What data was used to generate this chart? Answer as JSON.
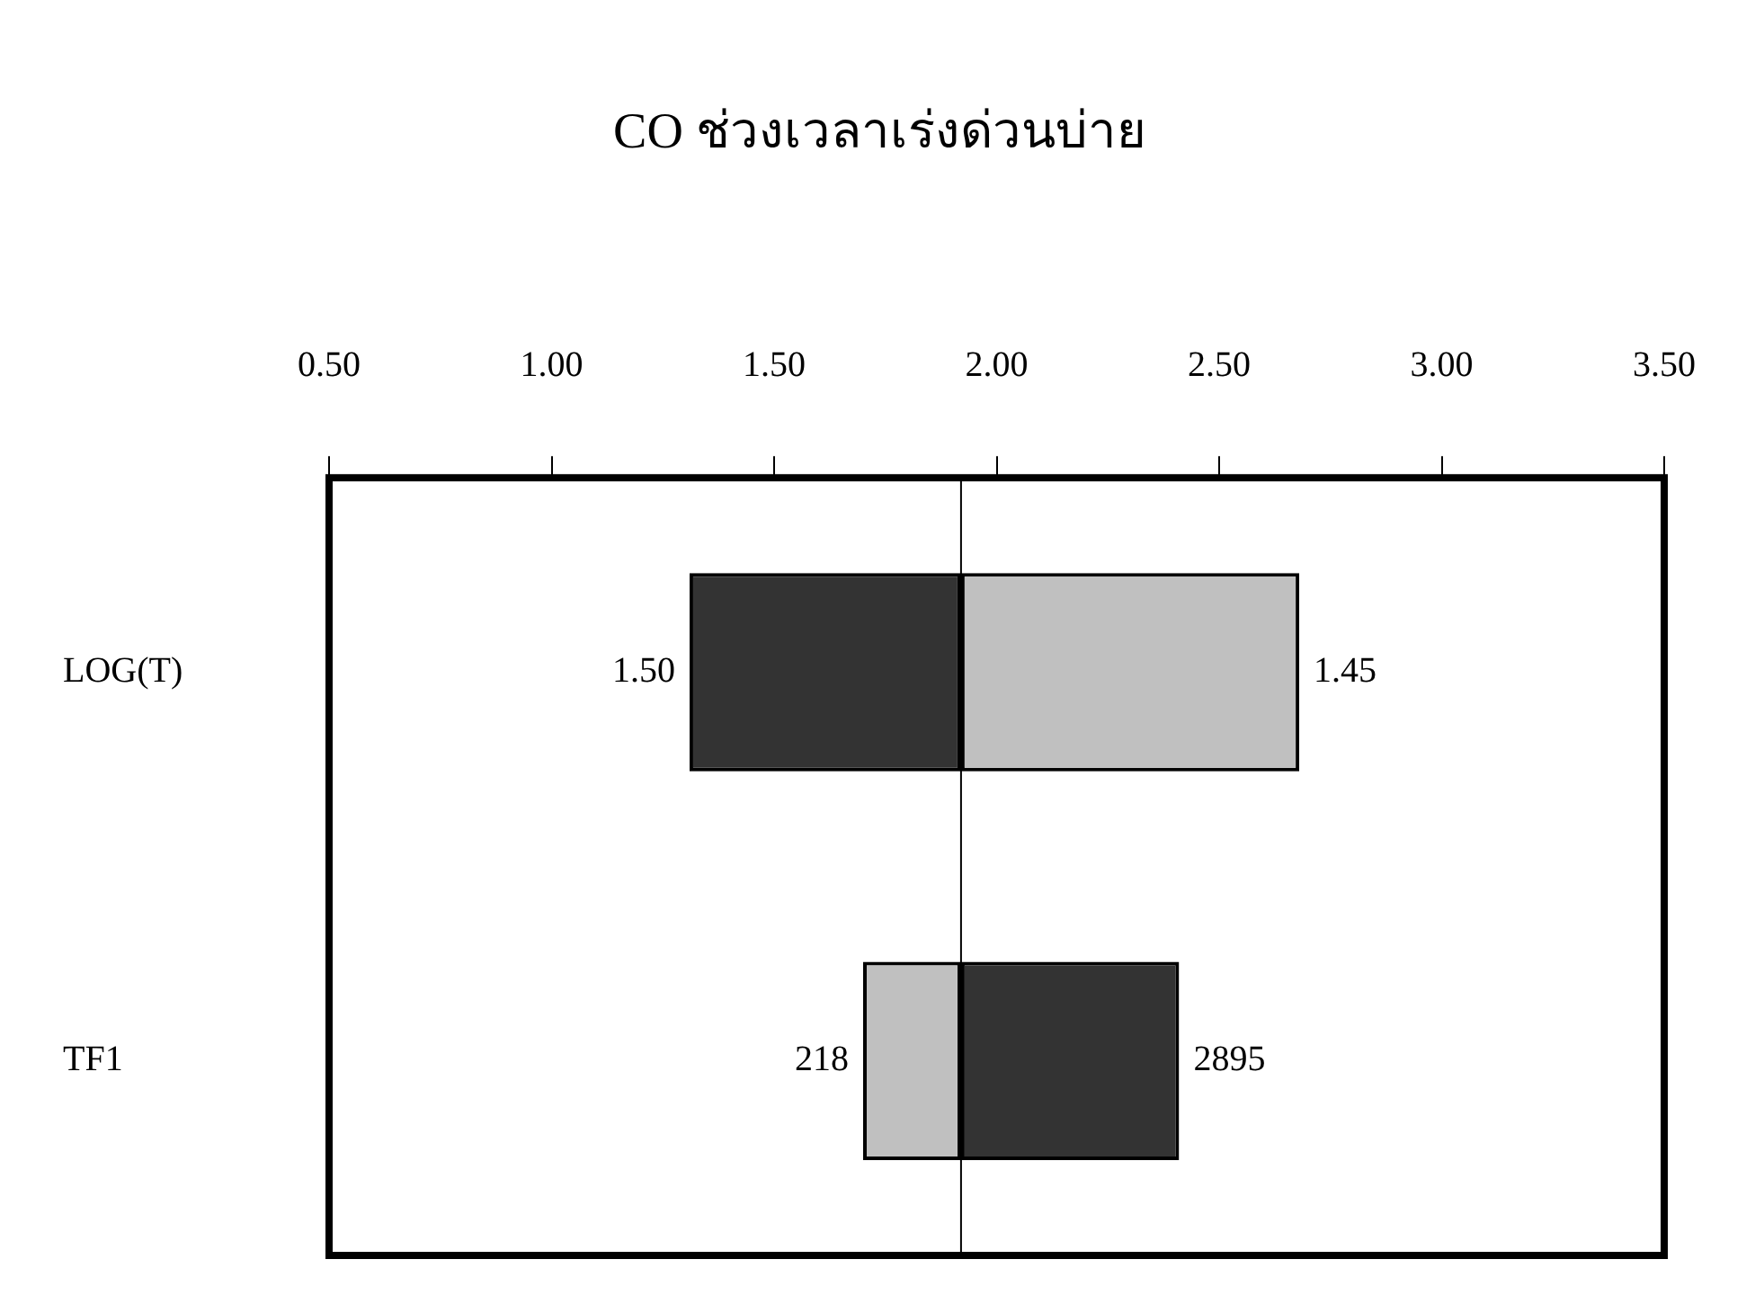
{
  "chart_data": {
    "type": "bar",
    "orientation": "horizontal",
    "title": "CO ช่วงเวลาเร่งด่วนบ่าย",
    "categories": [
      "LOG(T)",
      "TF1"
    ],
    "series": [
      {
        "color": "#333333",
        "base": [
          1.31,
          1.92
        ],
        "values": [
          0.61,
          0.49
        ]
      },
      {
        "color": "#c0c0c0",
        "base": [
          1.92,
          1.7
        ],
        "values": [
          0.76,
          0.22
        ]
      }
    ],
    "xlim": [
      0.5,
      3.5
    ],
    "xticks": [
      {
        "value": 0.5,
        "label": "0.50"
      },
      {
        "value": 1,
        "label": "1.00"
      },
      {
        "value": 1.5,
        "label": "1.50"
      },
      {
        "value": 2,
        "label": "2.00"
      },
      {
        "value": 2.5,
        "label": "2.50"
      },
      {
        "value": 3,
        "label": "3.00"
      },
      {
        "value": 3.5,
        "label": "3.50"
      }
    ],
    "ref_lines": [
      {
        "axis": "x",
        "value": 1.92,
        "color": "#000000"
      }
    ],
    "annotations": [
      {
        "text": "1.50",
        "x": 1.31,
        "y": "LOG(T)"
      },
      {
        "text": "1.45",
        "x": 2.68,
        "y": "LOG(T)"
      },
      {
        "text": "218",
        "x": 1.7,
        "y": "TF1"
      },
      {
        "text": "2895",
        "x": 2.41,
        "y": "TF1"
      }
    ],
    "grid": false,
    "legend": false
  }
}
